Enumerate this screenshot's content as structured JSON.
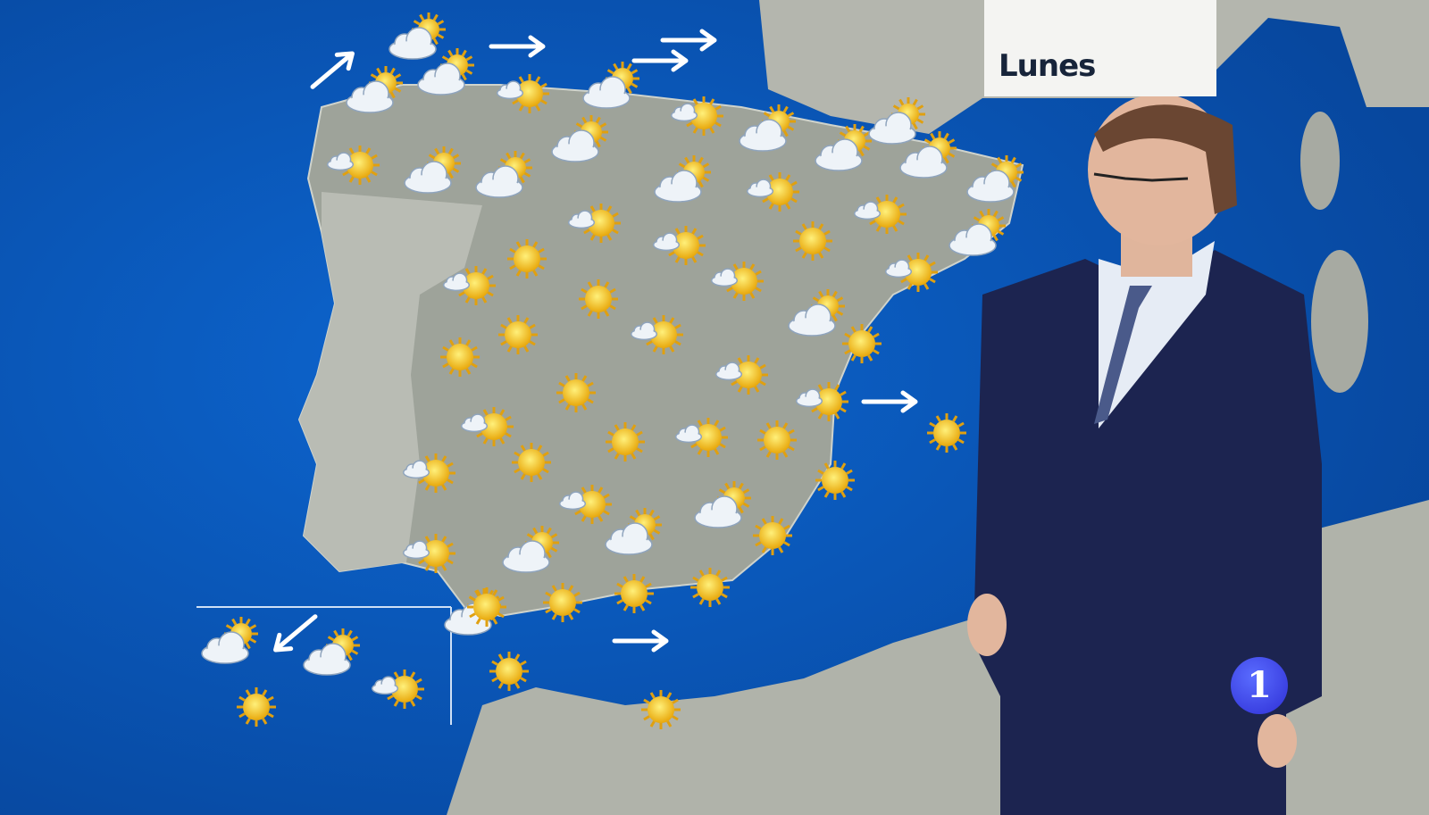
{
  "day_label": "Lunes",
  "channel_logo": "1",
  "colors": {
    "sea": "#0a5cc4",
    "land": "#9ea39a",
    "sun": "#f6c21a",
    "cloud": "#eef3f8",
    "suit": "#1c2450",
    "logo": "#3a3be0"
  },
  "forecast_icons": [
    "cloud",
    "cloud",
    "cloud",
    "sun-cloud",
    "cloud",
    "sun-cloud",
    "cloud",
    "cloud",
    "cloud",
    "cloud",
    "cloud",
    "cloud",
    "sun-cloud",
    "cloud",
    "cloud",
    "cloud",
    "cloud",
    "sun-cloud",
    "sun-cloud",
    "cloud",
    "sun-cloud",
    "sun",
    "sun-cloud",
    "sun",
    "sun-cloud",
    "sun",
    "sun-cloud",
    "sun-cloud",
    "cloud",
    "sun",
    "sun-cloud",
    "sun",
    "sun",
    "sun",
    "sun-cloud",
    "sun-cloud",
    "sun",
    "sun-cloud",
    "sun",
    "sun-cloud",
    "sun",
    "sun-cloud",
    "sun",
    "sun",
    "sun-cloud",
    "cloud",
    "sun",
    "sun-cloud",
    "cloud",
    "cloud",
    "sun",
    "sun",
    "sun",
    "sun",
    "cloud",
    "sun",
    "sun",
    "cloud",
    "cloud",
    "sun",
    "sun-cloud",
    "sun"
  ],
  "wind_arrows": [
    "arrow-northeast",
    "arrow-east",
    "arrow-east",
    "arrow-east",
    "arrow-east",
    "arrow-east",
    "arrow-southwest",
    "arrow-east"
  ]
}
